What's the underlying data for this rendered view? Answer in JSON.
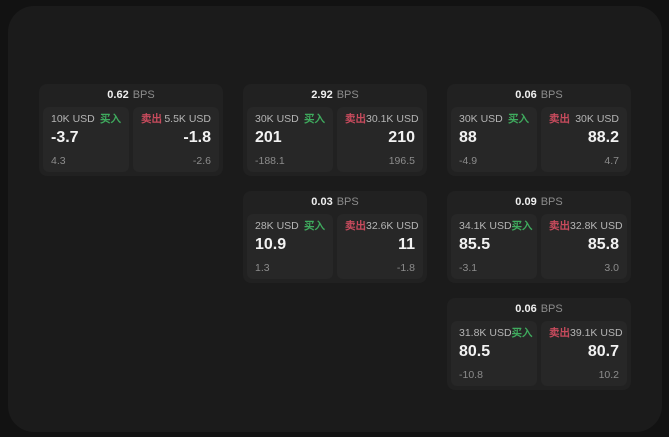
{
  "labels": {
    "bps_unit": "BPS",
    "buy": "买入",
    "sell": "卖出"
  },
  "colors": {
    "background": "#121212",
    "panel": "#1b1b1b",
    "card": "#212121",
    "subcard": "#272727",
    "buy": "#3fab5e",
    "sell": "#c84b5d"
  },
  "cards": [
    {
      "grid": {
        "row": 1,
        "col": 1
      },
      "bps": "0.62",
      "buy": {
        "amount": "10K USD",
        "value": "-3.7",
        "sub": "4.3"
      },
      "sell": {
        "amount": "5.5K USD",
        "value": "-1.8",
        "sub": "-2.6"
      }
    },
    {
      "grid": {
        "row": 1,
        "col": 2
      },
      "bps": "2.92",
      "buy": {
        "amount": "30K USD",
        "value": "201",
        "sub": "-188.1"
      },
      "sell": {
        "amount": "30.1K USD",
        "value": "210",
        "sub": "196.5"
      }
    },
    {
      "grid": {
        "row": 1,
        "col": 3
      },
      "bps": "0.06",
      "buy": {
        "amount": "30K USD",
        "value": "88",
        "sub": "-4.9"
      },
      "sell": {
        "amount": "30K USD",
        "value": "88.2",
        "sub": "4.7"
      }
    },
    {
      "grid": {
        "row": 2,
        "col": 2
      },
      "bps": "0.03",
      "buy": {
        "amount": "28K USD",
        "value": "10.9",
        "sub": "1.3"
      },
      "sell": {
        "amount": "32.6K USD",
        "value": "11",
        "sub": "-1.8"
      }
    },
    {
      "grid": {
        "row": 2,
        "col": 3
      },
      "bps": "0.09",
      "buy": {
        "amount": "34.1K USD",
        "value": "85.5",
        "sub": "-3.1"
      },
      "sell": {
        "amount": "32.8K USD",
        "value": "85.8",
        "sub": "3.0"
      }
    },
    {
      "grid": {
        "row": 3,
        "col": 3
      },
      "bps": "0.06",
      "buy": {
        "amount": "31.8K USD",
        "value": "80.5",
        "sub": "-10.8"
      },
      "sell": {
        "amount": "39.1K USD",
        "value": "80.7",
        "sub": "10.2"
      }
    }
  ]
}
